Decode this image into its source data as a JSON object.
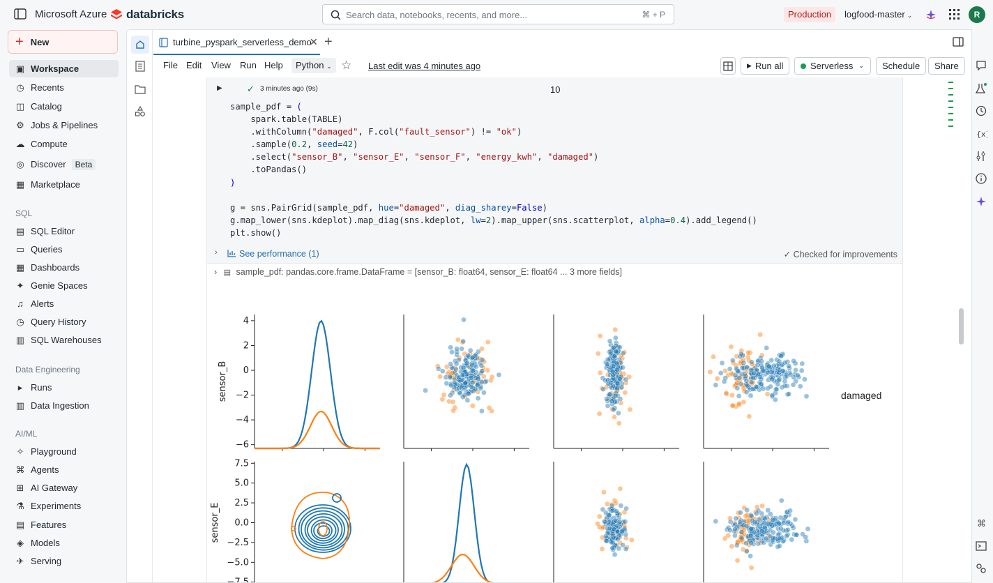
{
  "topbar": {
    "brand": "Microsoft Azure",
    "logo": "databricks",
    "search_placeholder": "Search data, notebooks, recents, and more...",
    "search_shortcut": "⌘ + P",
    "environment": "Production",
    "workspace": "logfood-master",
    "avatar_initial": "R"
  },
  "nav": {
    "new_label": "New",
    "items_top": [
      "Workspace",
      "Recents",
      "Catalog",
      "Jobs & Pipelines",
      "Compute",
      "Discover",
      "Marketplace"
    ],
    "discover_badge": "Beta",
    "sql_section": "SQL",
    "sql_items": [
      "SQL Editor",
      "Queries",
      "Dashboards",
      "Genie Spaces",
      "Alerts",
      "Query History",
      "SQL Warehouses"
    ],
    "de_section": "Data Engineering",
    "de_items": [
      "Runs",
      "Data Ingestion"
    ],
    "aiml_section": "AI/ML",
    "aiml_items": [
      "Playground",
      "Agents",
      "AI Gateway",
      "Experiments",
      "Features",
      "Models",
      "Serving"
    ]
  },
  "tab": {
    "title": "turbine_pyspark_serverless_demo"
  },
  "menubar": {
    "menus": [
      "File",
      "Edit",
      "View",
      "Run",
      "Help"
    ],
    "language": "Python",
    "last_edit": "Last edit was 4 minutes ago",
    "run_all": "Run all",
    "compute": "Serverless",
    "schedule": "Schedule",
    "share": "Share"
  },
  "cell": {
    "prev_status": "3 minutes ago (9s)",
    "prev_value": "10",
    "perf_link": "See performance (1)",
    "perf_status": "Checked for improvements",
    "df_name": "sample_pdf:",
    "df_type": "pandas.core.frame.DataFrame = [sensor_B: float64, sensor_E: float64 ... 3 more fields]"
  },
  "chart_data": {
    "type": "scatter",
    "description_kind": "seaborn PairGrid (upper: scatter, diagonal: kde, lower: kde contour)",
    "hue": "damaged",
    "legend_title": "damaged",
    "series": [
      {
        "name": "",
        "color": "#1f77b4"
      },
      {
        "name": "",
        "color": "#ff7f0e"
      }
    ],
    "rows": [
      {
        "ylabel": "sensor_B",
        "yticks": [
          4,
          2,
          0,
          -2,
          -4,
          -6
        ],
        "ylim": [
          -6.3,
          4.5
        ]
      },
      {
        "ylabel": "sensor_E",
        "yticks": [
          7.5,
          5.0,
          2.5,
          0.0,
          -2.5,
          -5.0,
          -7.5
        ],
        "ylim": [
          -7.7,
          7.7
        ]
      }
    ],
    "grid": false
  }
}
